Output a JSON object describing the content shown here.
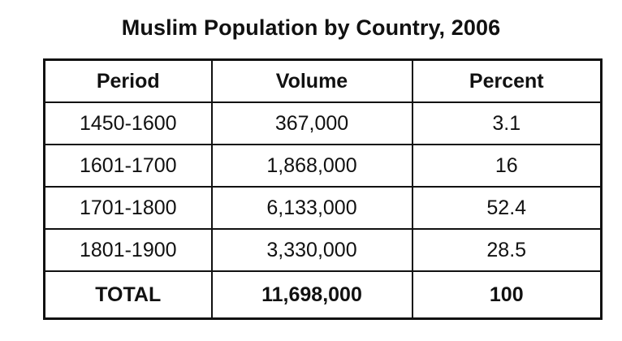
{
  "title": "Muslim Population by Country, 2006",
  "chart_data": {
    "type": "table",
    "title": "Muslim Population by Country, 2006",
    "columns": [
      "Period",
      "Volume",
      "Percent"
    ],
    "rows": [
      [
        "1450-1600",
        "367,000",
        "3.1"
      ],
      [
        "1601-1700",
        "1,868,000",
        "16"
      ],
      [
        "1701-1800",
        "6,133,000",
        "52.4"
      ],
      [
        "1801-1900",
        "3,330,000",
        "28.5"
      ]
    ],
    "total": [
      "TOTAL",
      "11,698,000",
      "100"
    ]
  }
}
